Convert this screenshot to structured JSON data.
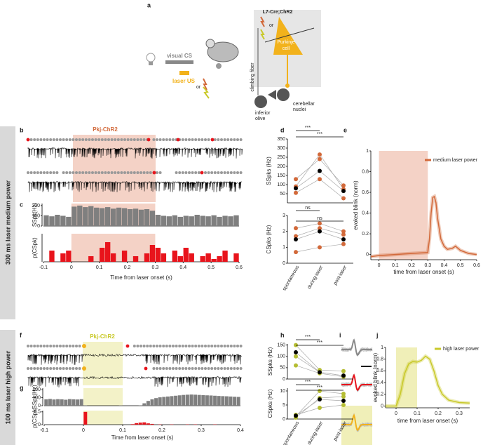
{
  "panel_labels": [
    "a",
    "b",
    "c",
    "d",
    "e",
    "f",
    "g",
    "h",
    "i",
    "j"
  ],
  "side_labels": [
    "300 ms laser medium power",
    "100 ms laser high power"
  ],
  "stim_labels": [
    "Pkj-ChR2",
    "Pkj-ChR2"
  ],
  "schematic": {
    "line": "L7-Cre;ChR2",
    "or_top": "or",
    "purkinje": [
      "Purkinje",
      "cell"
    ],
    "climbing": "climbing fiber",
    "visual": "visual CS",
    "laser": "laser US",
    "or_stim": "or",
    "nuclei": [
      "cerebellar",
      "nuclei"
    ],
    "olive": [
      "inferior",
      "olive"
    ]
  },
  "chart_data": [
    {
      "type": "histogram",
      "ylabel": "SSpk(Hz)",
      "color": "#7f7f7f",
      "laser": [
        0,
        0.3
      ],
      "laser_color": "#f4d2c6",
      "bins": [
        -0.1,
        -0.08,
        -0.06,
        -0.04,
        -0.02,
        0,
        0.02,
        0.04,
        0.06,
        0.08,
        0.1,
        0.12,
        0.14,
        0.16,
        0.18,
        0.2,
        0.22,
        0.24,
        0.26,
        0.28,
        0.3,
        0.32,
        0.34,
        0.36,
        0.38,
        0.4,
        0.42,
        0.44,
        0.46,
        0.48,
        0.5,
        0.52,
        0.54,
        0.56,
        0.58,
        0.6
      ],
      "values": [
        105,
        95,
        110,
        100,
        90,
        190,
        200,
        185,
        195,
        180,
        175,
        185,
        170,
        180,
        175,
        165,
        170,
        160,
        165,
        150,
        110,
        100,
        95,
        105,
        90,
        100,
        95,
        110,
        100,
        95,
        105,
        90,
        100,
        95,
        105
      ],
      "xlim": [
        -0.1,
        0.6
      ],
      "ylim": [
        0,
        220
      ],
      "yticks": [
        0,
        100,
        200
      ]
    },
    {
      "type": "histogram",
      "ylabel": "p(CSpk)",
      "xlabel": "Time from laser onset (s)",
      "color": "#e8141c",
      "laser": [
        0,
        0.3
      ],
      "laser_color": "#f4d2c6",
      "bins": [
        -0.1,
        -0.08,
        -0.06,
        -0.04,
        -0.02,
        0,
        0.02,
        0.04,
        0.06,
        0.08,
        0.1,
        0.12,
        0.14,
        0.16,
        0.18,
        0.2,
        0.22,
        0.24,
        0.26,
        0.28,
        0.3,
        0.32,
        0.34,
        0.36,
        0.38,
        0.4,
        0.42,
        0.44,
        0.46,
        0.48,
        0.5,
        0.52,
        0.54,
        0.56,
        0.58,
        0.6
      ],
      "values": [
        0,
        0.04,
        0,
        0.03,
        0.04,
        0,
        0,
        0,
        0.02,
        0,
        0.05,
        0.07,
        0.03,
        0,
        0.04,
        0,
        0.02,
        0,
        0.03,
        0.06,
        0.05,
        0.03,
        0,
        0.04,
        0.02,
        0.05,
        0.03,
        0,
        0.02,
        0.03,
        0.01,
        0.02,
        0.04,
        0,
        0.03
      ],
      "xlim": [
        -0.1,
        0.6
      ],
      "ylim": [
        0,
        0.1
      ],
      "xticks": [
        -0.1,
        0,
        0.1,
        0.2,
        0.3,
        0.4,
        0.5,
        0.6
      ]
    },
    {
      "type": "dot",
      "ylabel": "SSpks (Hz)",
      "ylim": [
        0,
        350
      ],
      "yticks": [
        50,
        100,
        150,
        200,
        250,
        300,
        350
      ],
      "series": [
        {
          "color": "#d2693a",
          "values": [
            130,
            240,
            95
          ]
        },
        {
          "color": "#d2693a",
          "values": [
            90,
            265,
            75
          ]
        },
        {
          "color": "#d2693a",
          "values": [
            55,
            130,
            25
          ]
        },
        {
          "color": "#000000",
          "values": [
            80,
            175,
            65
          ]
        }
      ],
      "brackets": [
        {
          "between": [
            0,
            1
          ],
          "label": "***"
        },
        {
          "between": [
            0,
            2
          ],
          "label": "***"
        }
      ]
    },
    {
      "type": "dot",
      "ylabel": "CSpks (Hz)",
      "categories": [
        "spontaneous",
        "during-laser",
        "post-laser"
      ],
      "ylim": [
        0,
        3
      ],
      "yticks": [
        0,
        1,
        2,
        3
      ],
      "series": [
        {
          "color": "#d2693a",
          "values": [
            2.2,
            2.5,
            2.0
          ]
        },
        {
          "color": "#d2693a",
          "values": [
            1.7,
            2.2,
            1.8
          ]
        },
        {
          "color": "#d2693a",
          "values": [
            0.7,
            1.0,
            1.2
          ]
        },
        {
          "color": "#000000",
          "values": [
            1.5,
            2.0,
            1.5
          ]
        }
      ],
      "brackets": [
        {
          "between": [
            0,
            1
          ],
          "label": "ns"
        },
        {
          "between": [
            0,
            2
          ],
          "label": "ns"
        }
      ]
    },
    {
      "type": "line",
      "ylabel": "evoked blink (norm)",
      "xlabel": "time from laser onset (s)",
      "laser": [
        0,
        0.3
      ],
      "laser_color": "#f4d2c6",
      "x": [
        -0.05,
        0,
        0.1,
        0.2,
        0.3,
        0.31,
        0.32,
        0.33,
        0.34,
        0.35,
        0.36,
        0.38,
        0.4,
        0.42,
        0.45,
        0.47,
        0.5,
        0.55,
        0.6
      ],
      "series": [
        {
          "name": "medium laser power",
          "color": "#d2693a",
          "values": [
            -0.02,
            -0.01,
            0,
            0.01,
            0.02,
            0.15,
            0.4,
            0.55,
            0.56,
            0.5,
            0.35,
            0.15,
            0.08,
            0.05,
            0.06,
            0.08,
            0.04,
            0.01,
            0
          ]
        }
      ],
      "xlim": [
        -0.05,
        0.6
      ],
      "ylim": [
        -0.05,
        1
      ],
      "xticks": [
        0,
        0.1,
        0.2,
        0.3,
        0.4,
        0.5,
        0.6
      ],
      "yticks": [
        0,
        0.2,
        0.4,
        0.6,
        0.8,
        1
      ]
    },
    {
      "type": "histogram",
      "ylabel": "SSpk(Hz)",
      "color": "#7f7f7f",
      "laser": [
        0,
        0.1
      ],
      "laser_color": "#f3f2c8",
      "bins": [
        -0.1,
        -0.09,
        -0.08,
        -0.07,
        -0.06,
        -0.05,
        -0.04,
        -0.03,
        -0.02,
        -0.01,
        0,
        0.01,
        0.02,
        0.03,
        0.04,
        0.05,
        0.06,
        0.07,
        0.08,
        0.09,
        0.1,
        0.11,
        0.12,
        0.13,
        0.14,
        0.15,
        0.16,
        0.17,
        0.18,
        0.19,
        0.2,
        0.21,
        0.22,
        0.23,
        0.24,
        0.25,
        0.26,
        0.27,
        0.28,
        0.29,
        0.3,
        0.31,
        0.32,
        0.33,
        0.34,
        0.35,
        0.36,
        0.37,
        0.38,
        0.39,
        0.4
      ],
      "values": [
        80,
        85,
        78,
        82,
        80,
        75,
        83,
        80,
        78,
        82,
        5,
        0,
        0,
        0,
        0,
        0,
        0,
        0,
        0,
        3,
        0,
        0,
        0,
        0,
        5,
        30,
        60,
        80,
        95,
        105,
        110,
        115,
        120,
        125,
        130,
        135,
        138,
        140,
        138,
        135,
        132,
        130,
        128,
        125,
        122,
        120,
        118,
        115,
        112,
        110
      ],
      "xlim": [
        -0.1,
        0.4
      ],
      "ylim": [
        0,
        220
      ],
      "yticks": [
        0,
        100,
        200
      ]
    },
    {
      "type": "histogram",
      "ylabel": "p(CSpk)",
      "xlabel": "Time from laser onset (s)",
      "color": "#e8141c",
      "laser": [
        0,
        0.1
      ],
      "laser_color": "#f3f2c8",
      "bins": [
        -0.1,
        -0.09,
        -0.08,
        -0.07,
        -0.06,
        -0.05,
        -0.04,
        -0.03,
        -0.02,
        -0.01,
        0,
        0.01,
        0.02,
        0.03,
        0.04,
        0.05,
        0.06,
        0.07,
        0.08,
        0.09,
        0.1,
        0.11,
        0.12,
        0.13,
        0.14,
        0.15,
        0.16,
        0.17,
        0.18,
        0.19,
        0.2,
        0.21,
        0.22,
        0.23,
        0.24,
        0.25,
        0.26,
        0.27,
        0.28,
        0.29,
        0.3,
        0.31,
        0.32,
        0.33,
        0.34,
        0.35,
        0.36,
        0.37,
        0.38,
        0.39,
        0.4
      ],
      "values": [
        0,
        0,
        0,
        0,
        0,
        0,
        0,
        0,
        0,
        0,
        0.5,
        0,
        0,
        0,
        0,
        0,
        0,
        0,
        0,
        0,
        0,
        0,
        0.02,
        0.06,
        0.08,
        0.09,
        0.05,
        0.03,
        0,
        0.01,
        0,
        0,
        0.01,
        0,
        0,
        0,
        0.01,
        0,
        0.01,
        0,
        0,
        0,
        0,
        0.01,
        0,
        0,
        0,
        0,
        0,
        0
      ],
      "xlim": [
        -0.1,
        0.4
      ],
      "ylim": [
        0,
        0.55
      ],
      "xticks": [
        -0.1,
        0,
        0.1,
        0.2,
        0.3,
        0.4
      ],
      "yticks": [
        0,
        0.5
      ]
    },
    {
      "type": "dot",
      "ylabel": "SSpks (Hz)",
      "ylim": [
        0,
        155
      ],
      "yticks": [
        0,
        50,
        100,
        150
      ],
      "series": [
        {
          "color": "#b5bd32",
          "values": [
            150,
            40,
            35
          ]
        },
        {
          "color": "#b5bd32",
          "values": [
            100,
            30,
            15
          ]
        },
        {
          "color": "#b5bd32",
          "values": [
            60,
            25,
            10
          ]
        },
        {
          "color": "#000000",
          "values": [
            118,
            30,
            15
          ]
        }
      ],
      "brackets": [
        {
          "between": [
            0,
            1
          ],
          "label": "***"
        },
        {
          "between": [
            0,
            2
          ],
          "label": "***"
        }
      ]
    },
    {
      "type": "dot",
      "ylabel": "CSpks (Hz)",
      "categories": [
        "spontaneous",
        "during-laser",
        "post-laser"
      ],
      "ylim": [
        0,
        11
      ],
      "yticks": [
        0,
        5,
        10
      ],
      "series": [
        {
          "color": "#b5bd32",
          "values": [
            1,
            10,
            9
          ]
        },
        {
          "color": "#b5bd32",
          "values": [
            0.5,
            7.5,
            8
          ]
        },
        {
          "color": "#b5bd32",
          "values": [
            1.5,
            4,
            5
          ]
        },
        {
          "color": "#000000",
          "values": [
            1.2,
            7,
            6.5
          ]
        }
      ],
      "brackets": [
        {
          "between": [
            0,
            1
          ],
          "label": "***"
        },
        {
          "between": [
            0,
            2
          ],
          "label": "***"
        }
      ]
    },
    {
      "type": "line",
      "ylabel": "evoked blink (norm)",
      "xlabel": "time from laser onset (s)",
      "laser": [
        0,
        0.1
      ],
      "laser_color": "#f0efb8",
      "x": [
        -0.05,
        0,
        0.02,
        0.04,
        0.06,
        0.08,
        0.1,
        0.12,
        0.14,
        0.16,
        0.18,
        0.2,
        0.22,
        0.25,
        0.3,
        0.35
      ],
      "series": [
        {
          "name": "high laser power",
          "color": "#c9c92a",
          "values": [
            0,
            0,
            0.2,
            0.55,
            0.72,
            0.76,
            0.75,
            0.78,
            0.85,
            0.8,
            0.6,
            0.35,
            0.2,
            0.1,
            0.06,
            0.05
          ]
        }
      ],
      "xlim": [
        -0.05,
        0.35
      ],
      "ylim": [
        -0.03,
        1
      ],
      "xticks": [
        0,
        0.1,
        0.2,
        0.3
      ],
      "yticks": [
        0,
        0.2,
        0.4,
        0.6,
        0.8,
        1
      ]
    }
  ]
}
